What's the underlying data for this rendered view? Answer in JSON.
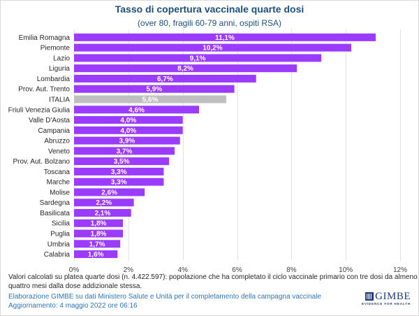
{
  "chart_data": {
    "type": "bar",
    "orientation": "horizontal",
    "title": "Tasso di copertura vaccinale quarte dosi",
    "subtitle": "(over 80, fragili 60-79 anni, ospiti RSA)",
    "xlabel": "",
    "ylabel": "",
    "xlim": [
      0,
      12
    ],
    "xticks": [
      "0%",
      "2%",
      "4%",
      "6%",
      "8%",
      "10%",
      "12%"
    ],
    "xtick_values": [
      0,
      2,
      4,
      6,
      8,
      10,
      12
    ],
    "grid": true,
    "categories": [
      "Emilia Romagna",
      "Piemonte",
      "Lazio",
      "Liguria",
      "Lombardia",
      "Prov. Aut. Trento",
      "ITALIA",
      "Friuli Venezia Giulia",
      "Valle D'Aosta",
      "Campania",
      "Abruzzo",
      "Veneto",
      "Prov. Aut. Bolzano",
      "Toscana",
      "Marche",
      "Molise",
      "Sardegna",
      "Basilicata",
      "Sicilia",
      "Puglia",
      "Umbria",
      "Calabria"
    ],
    "values": [
      11.1,
      10.2,
      9.1,
      8.2,
      6.7,
      5.9,
      5.6,
      4.6,
      4.0,
      4.0,
      3.9,
      3.7,
      3.5,
      3.3,
      3.3,
      2.6,
      2.2,
      2.1,
      1.8,
      1.8,
      1.7,
      1.6
    ],
    "data_labels": [
      "11,1%",
      "10,2%",
      "9,1%",
      "8,2%",
      "6,7%",
      "5,9%",
      "5,6%",
      "4,6%",
      "4,0%",
      "4,0%",
      "3,9%",
      "3,7%",
      "3,5%",
      "3,3%",
      "3,3%",
      "2,6%",
      "2,2%",
      "2,1%",
      "1,8%",
      "1,8%",
      "1,7%",
      "1,6%"
    ],
    "highlight_category": "ITALIA",
    "colors": {
      "bar": "#9b3bff",
      "highlight": "#bfbfbf",
      "grid": "#e3e3e3",
      "label": "#ffffff",
      "axis_text": "#404040"
    }
  },
  "footer": {
    "note_line1": "Valori calcolati su platea quarte dosi (n. 4.422.597): popolazione che ha completato il ciclo vaccinale primario con tre dosi da almeno",
    "note_line2": "quattro mesi dalla dose addizionale stessa.",
    "source": "Elaborazione GIMBE su dati Ministero Salute e Unità per il completamento della campagna vaccinale",
    "updated": "Aggiornamento: 4 maggio 2022 ore 06:16"
  },
  "logo": {
    "name": "GIMBE",
    "tagline": "EVIDENCE FOR HEALTH"
  }
}
